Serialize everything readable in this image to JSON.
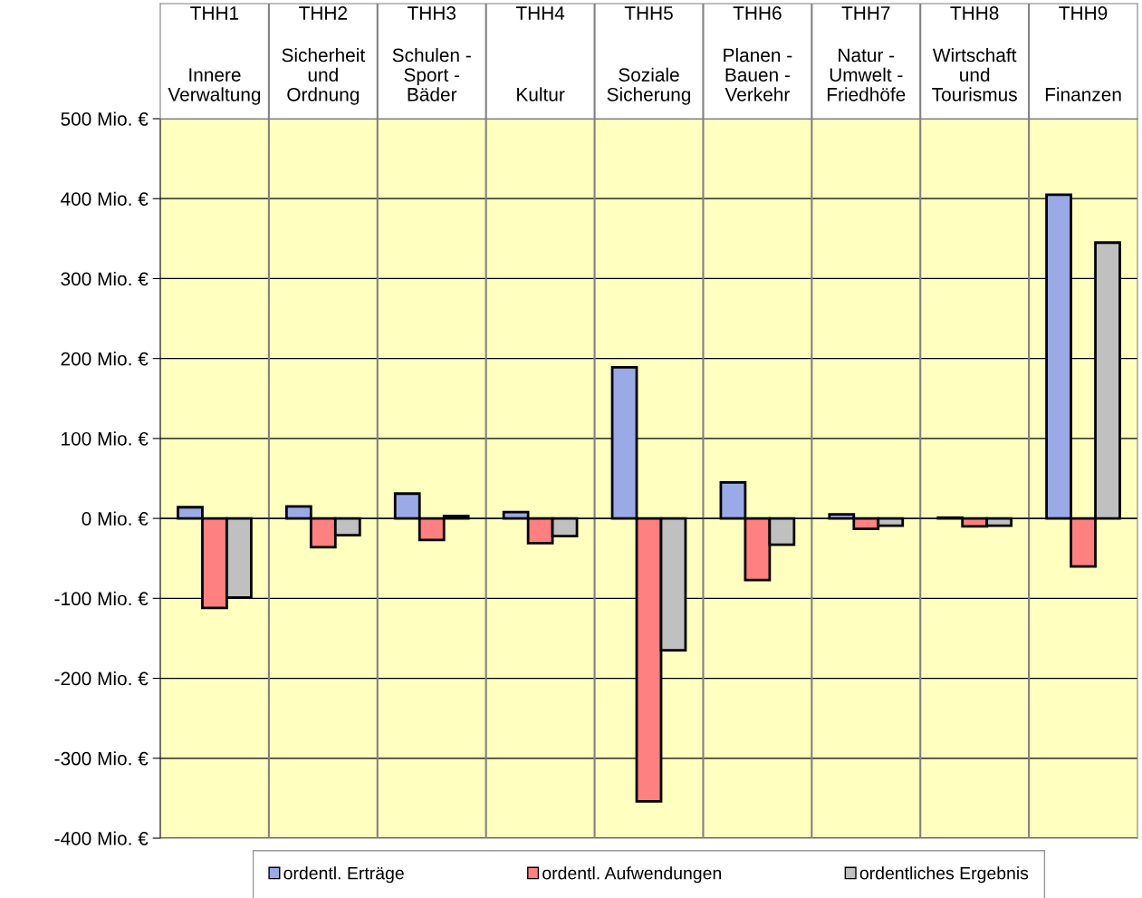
{
  "chart_data": {
    "type": "bar",
    "categories": [
      "THH1\nInnere\nVerwaltung",
      "THH2\nSicherheit\nund\nOrdnung",
      "THH3\nSchulen -\nSport -\nBäder",
      "THH4\nKultur",
      "THH5\nSoziale\nSicherung",
      "THH6\nPlanen -\nBauen -\nVerkehr",
      "THH7\nNatur -\nUmwelt -\nFriedhöfe",
      "THH8\nWirtschaft\nund\nTourismus",
      "THH9\nFinanzen"
    ],
    "series": [
      {
        "name": "ordentl. Erträge",
        "color": "#99aae6",
        "values": [
          14,
          15,
          31,
          8,
          189,
          45,
          5,
          1,
          405
        ]
      },
      {
        "name": "ordentl. Aufwendungen",
        "color": "#ff8080",
        "values": [
          -112,
          -36,
          -27,
          -31,
          -354,
          -77,
          -13,
          -10,
          -60
        ]
      },
      {
        "name": "ordentliches Ergebnis",
        "color": "#c0c0c0",
        "values": [
          -99,
          -21,
          3,
          -22,
          -165,
          -33,
          -9,
          -9,
          345
        ]
      }
    ],
    "ylim": [
      -400,
      500
    ],
    "yticks": [
      {
        "value": -400,
        "label": "-400 Mio. €"
      },
      {
        "value": -300,
        "label": "-300 Mio. €"
      },
      {
        "value": -200,
        "label": "-200 Mio. €"
      },
      {
        "value": -100,
        "label": "-100 Mio. €"
      },
      {
        "value": 0,
        "label": "0 Mio. €"
      },
      {
        "value": 100,
        "label": "100 Mio. €"
      },
      {
        "value": 200,
        "label": "200 Mio. €"
      },
      {
        "value": 300,
        "label": "300 Mio. €"
      },
      {
        "value": 400,
        "label": "400 Mio. €"
      },
      {
        "value": 500,
        "label": "500 Mio. €"
      }
    ],
    "grid": "y",
    "legend": "bottom"
  }
}
